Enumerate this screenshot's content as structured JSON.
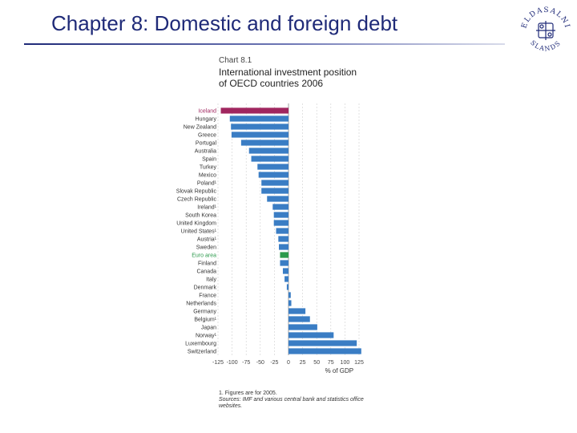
{
  "slide": {
    "title": "Chapter 8: Domestic and foreign debt"
  },
  "logo": {
    "icon": "university-seal-icon",
    "top_text": "ELDASALNI",
    "bottom_text": "SLANDS"
  },
  "chart_data": {
    "type": "bar",
    "orientation": "horizontal",
    "chart_number": "Chart 8.1",
    "title": "International investment position of OECD countries 2006",
    "xlabel": "% of GDP",
    "xlim": [
      -125,
      125
    ],
    "xticks": [
      "-125",
      "-100",
      "-75",
      "-50",
      "-25",
      "0",
      "25",
      "50",
      "75",
      "100",
      "125"
    ],
    "grid": "vertical dashed",
    "categories": [
      "Iceland",
      "Hungary",
      "New Zealand",
      "Greece",
      "Portugal",
      "Australia",
      "Spain",
      "Turkey",
      "Mexico",
      "Poland¹",
      "Slovak Republic",
      "Czech Republic",
      "Ireland¹",
      "South Korea",
      "United Kingdom",
      "United States¹",
      "Austria¹",
      "Sweden",
      "Euro area",
      "Finland",
      "Canada",
      "Italy",
      "Denmark",
      "France",
      "Netherlands",
      "Germany",
      "Belgium¹",
      "Japan",
      "Norway¹",
      "Luxembourg",
      "Switzerland"
    ],
    "values": [
      -120,
      -104,
      -102,
      -101,
      -84,
      -70,
      -66,
      -55,
      -53,
      -48,
      -48,
      -38,
      -28,
      -26,
      -26,
      -22,
      -18,
      -17,
      -15,
      -15,
      -10,
      -7,
      -3,
      4,
      5,
      30,
      38,
      51,
      80,
      121,
      129
    ],
    "highlight": {
      "Iceland": "#a0265f",
      "Euro area": "#2c9a4c"
    },
    "bar_color": "#3a7dc4",
    "footnote": "1. Figures are for 2005.",
    "source": "Sources: IMF and various central bank and statistics office websites."
  }
}
